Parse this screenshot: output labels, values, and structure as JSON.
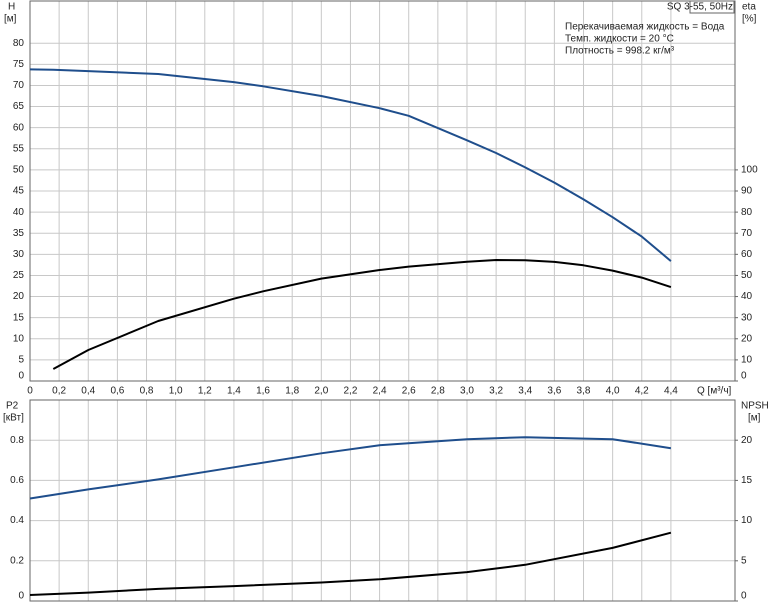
{
  "chart_data": [
    {
      "type": "line",
      "title": "SQ 3-55, 50Hz",
      "notes": [
        "Перекачиваемая жидкость = Вода",
        "Темп. жидкости = 20 °C",
        "Плотность = 998.2 кг/м³"
      ],
      "ylabel": "H",
      "yunit": "[м]",
      "y2label": "eta",
      "y2unit": "[%]",
      "xlabel": "Q [м³/ч]",
      "x": [
        0,
        0.16,
        0.4,
        0.88,
        1.4,
        1.6,
        2.0,
        2.4,
        2.6,
        3.0,
        3.2,
        3.4,
        3.6,
        3.8,
        4.0,
        4.2,
        4.4
      ],
      "series": [
        {
          "color": "#1f4e8c",
          "values": [
            73.8,
            73.7,
            73.4,
            72.7,
            70.8,
            69.8,
            67.5,
            64.6,
            62.8,
            57.0,
            54.0,
            50.6,
            47.0,
            43.0,
            38.8,
            34.2,
            28.4
          ]
        },
        {
          "color": "#000000",
          "axis": "y2",
          "values": [
            null,
            5.7,
            14.7,
            28.4,
            39.0,
            42.5,
            48.5,
            52.6,
            54.2,
            56.5,
            57.3,
            57.2,
            56.4,
            54.8,
            52.3,
            49.0,
            44.5
          ]
        }
      ],
      "xlim": [
        0,
        4.84
      ],
      "xticks": [
        0,
        {
          "value": 0.2,
          "label": "0,2"
        },
        {
          "value": 0.4,
          "label": "0,4"
        },
        {
          "value": 0.6,
          "label": "0,6"
        },
        {
          "value": 0.8,
          "label": "0,8"
        },
        {
          "value": 1.0,
          "label": "1,0"
        },
        {
          "value": 1.2,
          "label": "1,2"
        },
        {
          "value": 1.4,
          "label": "1,4"
        },
        {
          "value": 1.6,
          "label": "1,6"
        },
        {
          "value": 1.8,
          "label": "1,8"
        },
        {
          "value": 2.0,
          "label": "2,0"
        },
        {
          "value": 2.2,
          "label": "2,2"
        },
        {
          "value": 2.4,
          "label": "2,4"
        },
        {
          "value": 2.6,
          "label": "2,6"
        },
        {
          "value": 2.8,
          "label": "2,8"
        },
        {
          "value": 3.0,
          "label": "3,0"
        },
        {
          "value": 3.2,
          "label": "3,2"
        },
        {
          "value": 3.4,
          "label": "3,4"
        },
        {
          "value": 3.6,
          "label": "3,6"
        },
        {
          "value": 3.8,
          "label": "3,8"
        },
        {
          "value": 4.0,
          "label": "4,0"
        },
        {
          "value": 4.2,
          "label": "4,2"
        },
        {
          "value": 4.4,
          "label": "4,4"
        }
      ],
      "ylim": [
        0,
        90
      ],
      "yticks": [
        0,
        5,
        10,
        15,
        20,
        25,
        30,
        35,
        40,
        45,
        50,
        55,
        60,
        65,
        70,
        75,
        80
      ],
      "y2lim": [
        0,
        180
      ],
      "y2ticks": [
        0,
        10,
        20,
        30,
        40,
        50,
        60,
        70,
        80,
        90,
        100
      ],
      "grid": true
    },
    {
      "type": "line",
      "ylabel": "P2",
      "yunit": "[кВт]",
      "y2label": "NPSH",
      "y2unit": "[м]",
      "x": [
        0,
        0.4,
        0.88,
        1.4,
        2.0,
        2.4,
        3.0,
        3.4,
        4.0,
        4.4
      ],
      "series": [
        {
          "color": "#1f4e8c",
          "values": [
            0.51,
            0.555,
            0.605,
            0.665,
            0.735,
            0.775,
            0.805,
            0.815,
            0.805,
            0.76
          ]
        },
        {
          "color": "#000000",
          "axis": "y2",
          "values": [
            0.75,
            1.05,
            1.5,
            1.85,
            2.3,
            2.7,
            3.6,
            4.5,
            6.6,
            8.5
          ]
        }
      ],
      "xlim": [
        0,
        4.84
      ],
      "ylim": [
        0,
        1.0
      ],
      "yticks": [
        0,
        0.2,
        0.4,
        0.6,
        0.8
      ],
      "y2lim": [
        0,
        25
      ],
      "y2ticks": [
        0,
        5,
        10,
        15,
        20
      ],
      "grid": true
    }
  ]
}
